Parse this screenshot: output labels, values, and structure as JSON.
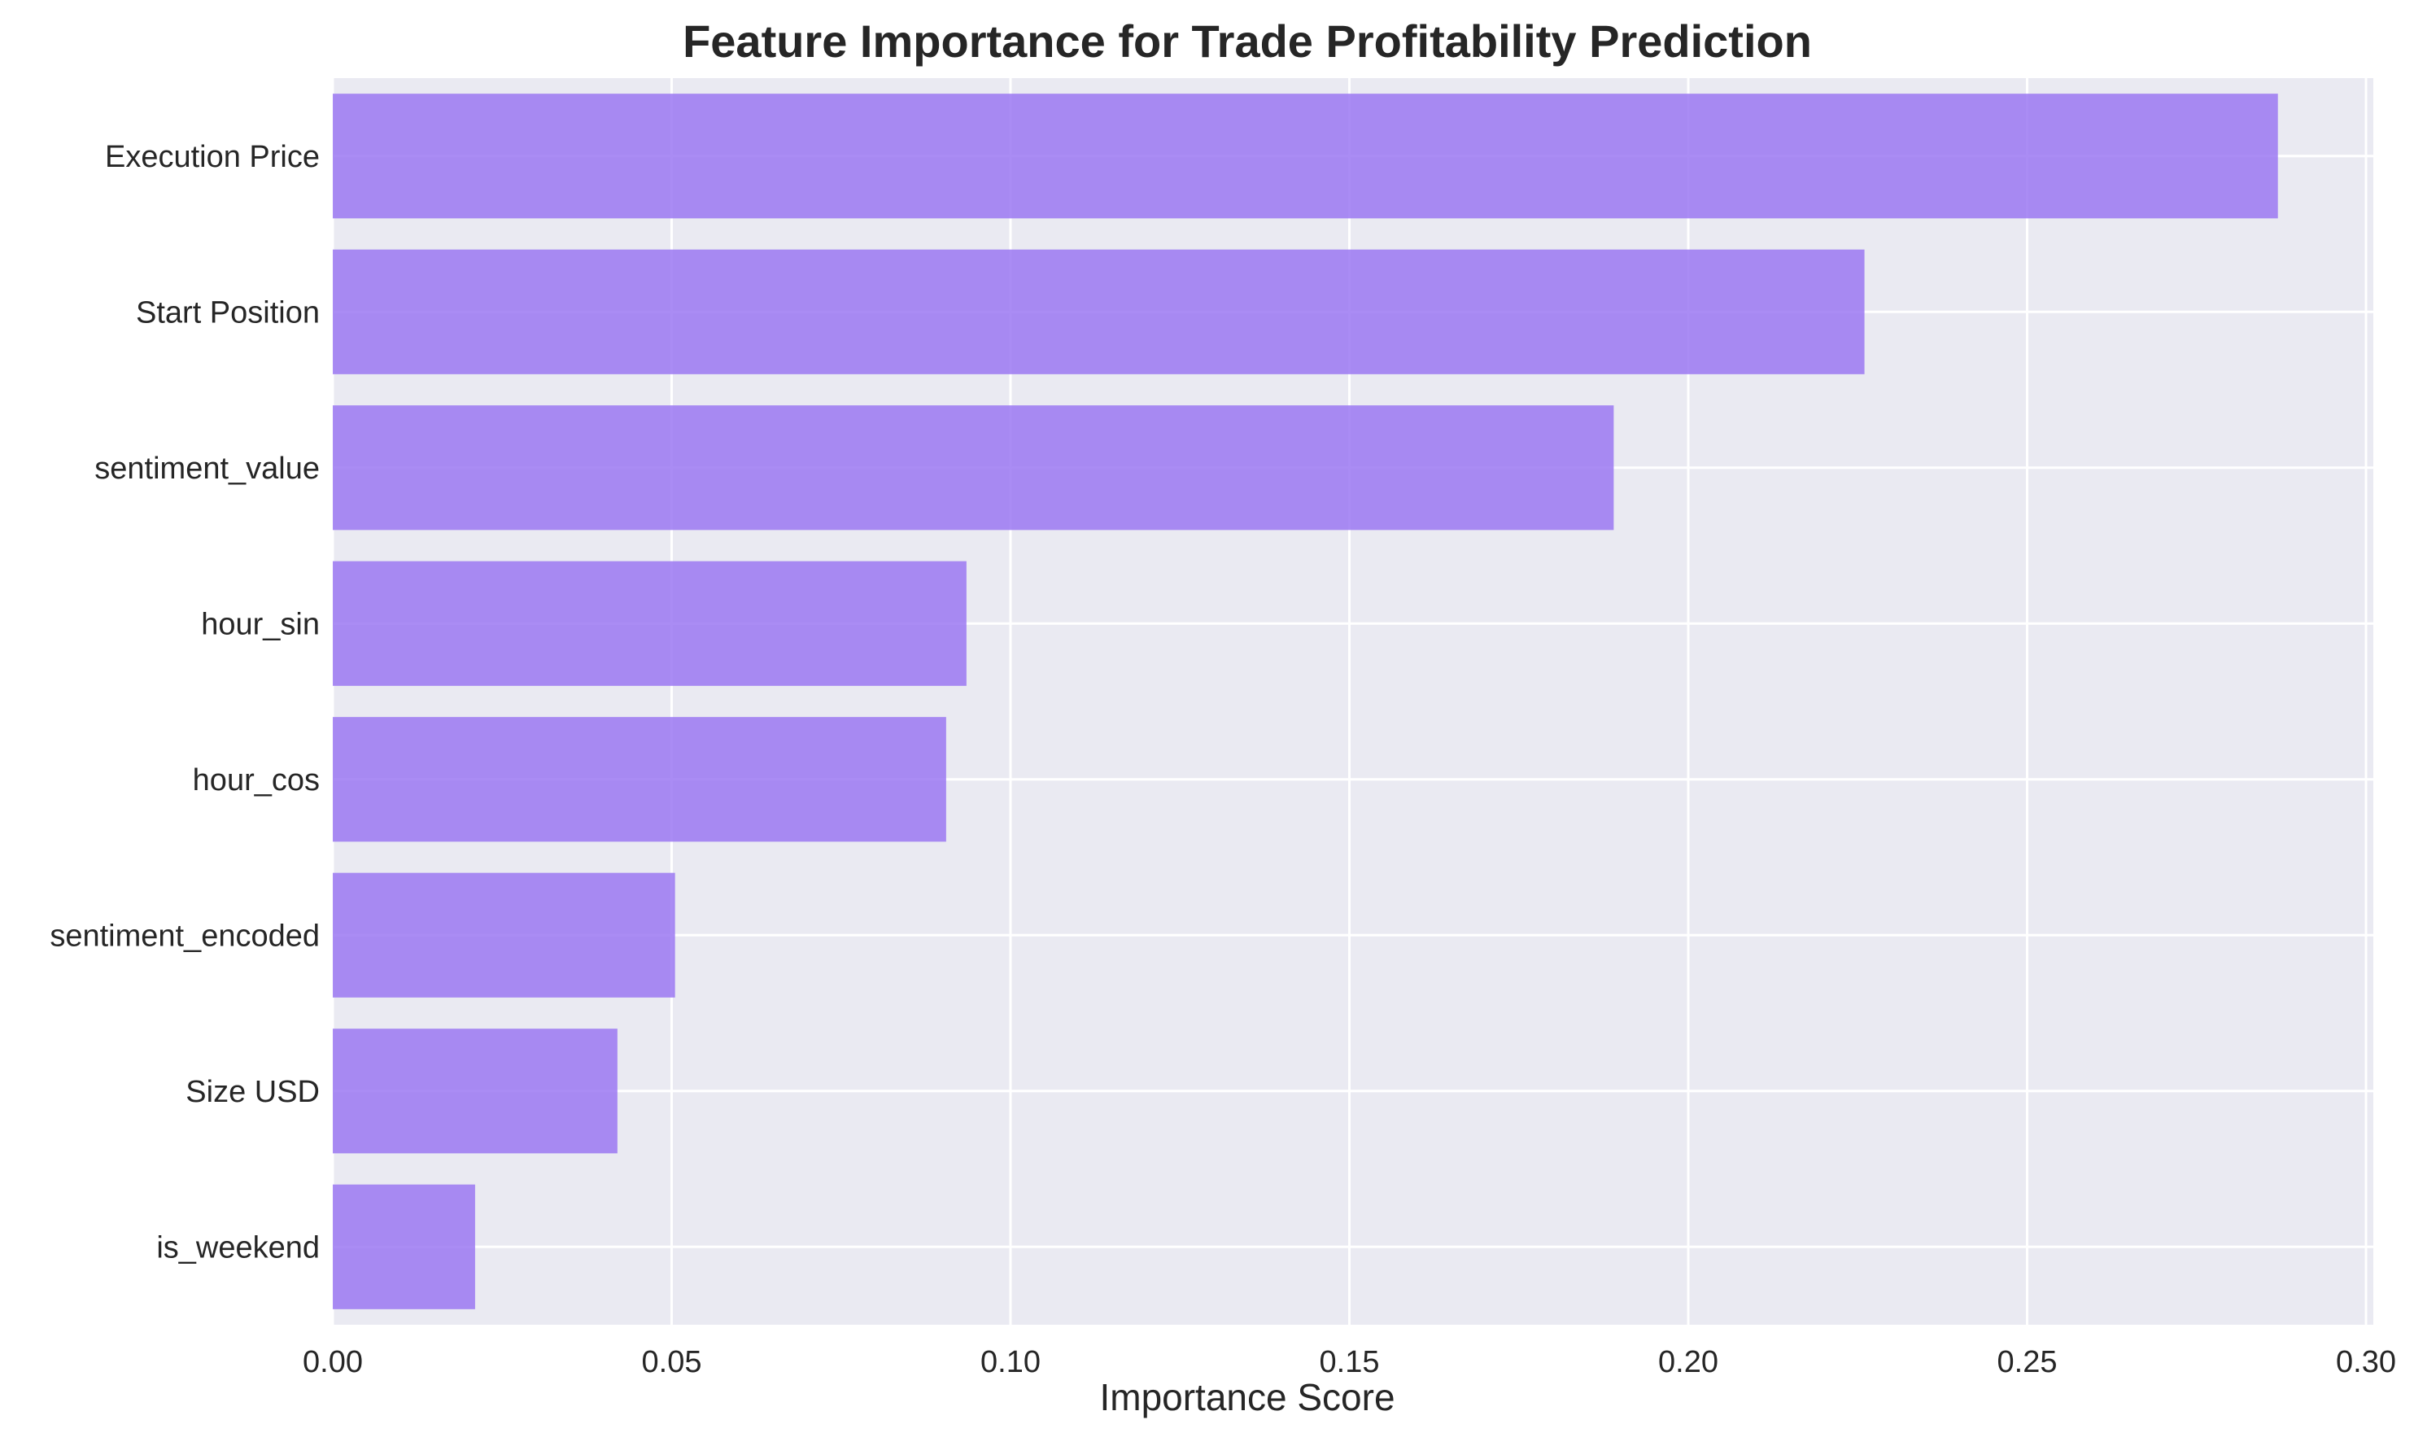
{
  "chart_data": {
    "type": "bar",
    "orientation": "horizontal",
    "title": "Feature Importance for Trade Profitability Prediction",
    "xlabel": "Importance Score",
    "ylabel": "",
    "xlim": [
      0,
      0.3
    ],
    "x_ticks": [
      "0.00",
      "0.05",
      "0.10",
      "0.15",
      "0.20",
      "0.25",
      "0.30"
    ],
    "x_tick_values": [
      0,
      0.05,
      0.1,
      0.15,
      0.2,
      0.25,
      0.3
    ],
    "categories": [
      "Execution Price",
      "Start Position",
      "sentiment_value",
      "hour_sin",
      "hour_cos",
      "sentiment_encoded",
      "Size USD",
      "is_weekend"
    ],
    "values": [
      0.287,
      0.226,
      0.189,
      0.0935,
      0.0905,
      0.0505,
      0.042,
      0.021
    ],
    "bar_color": "#9b78f2",
    "background_color": "#eaeaf2",
    "grid": true,
    "legend": "none"
  }
}
